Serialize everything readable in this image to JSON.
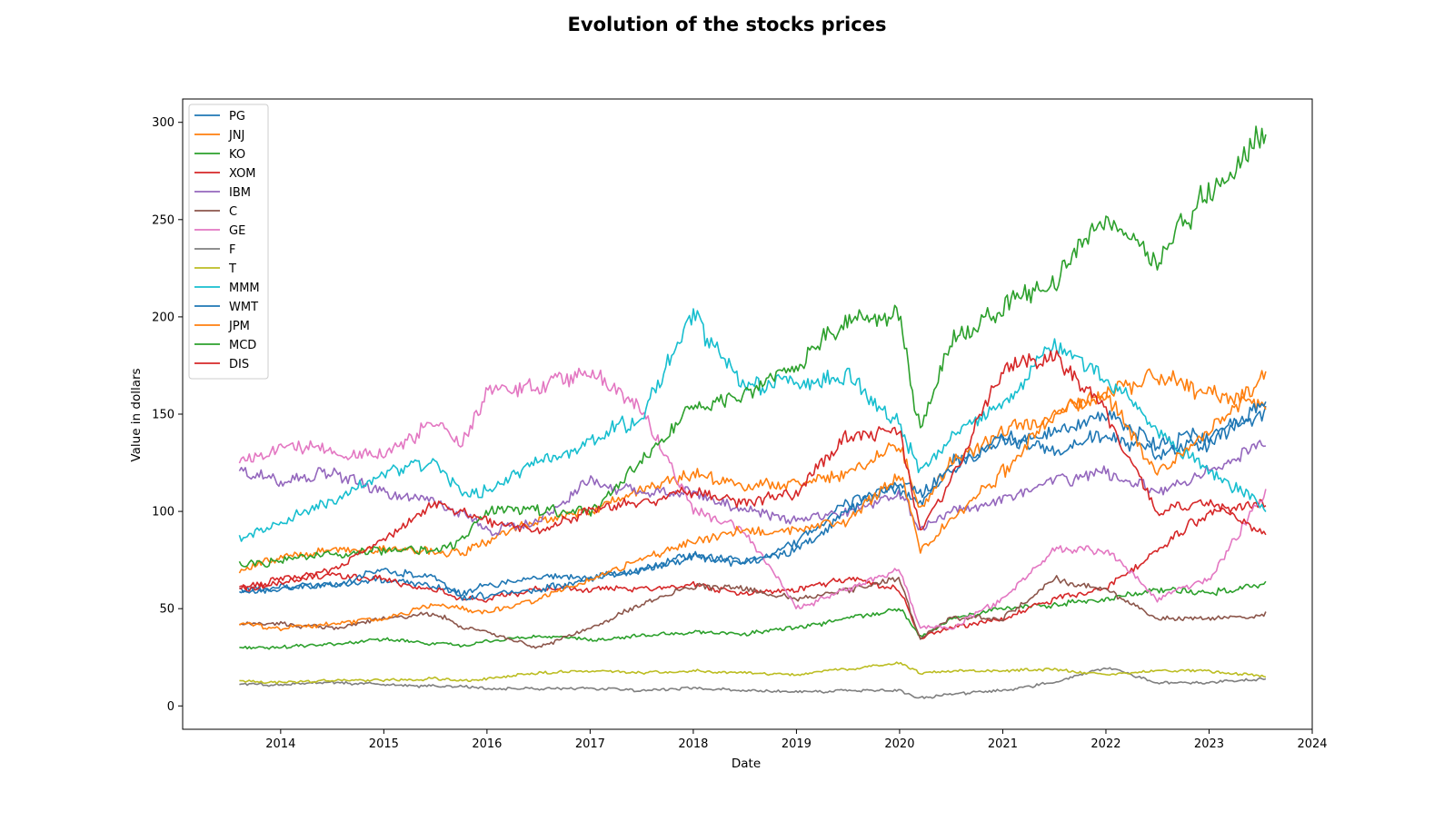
{
  "chart_data": {
    "type": "line",
    "title": "Evolution of the stocks prices",
    "xlabel": "Date",
    "ylabel": "Value in dollars",
    "xlim": [
      2013.05,
      2024.0
    ],
    "ylim": [
      -12,
      312
    ],
    "xticks": [
      2014,
      2015,
      2016,
      2017,
      2018,
      2019,
      2020,
      2021,
      2022,
      2023,
      2024
    ],
    "yticks": [
      0,
      50,
      100,
      150,
      200,
      250,
      300
    ],
    "grid": false,
    "legend_position": "top-left",
    "x": [
      2013.6,
      2014.0,
      2014.5,
      2015.0,
      2015.5,
      2015.75,
      2016.0,
      2016.5,
      2017.0,
      2017.5,
      2018.0,
      2018.5,
      2019.0,
      2019.5,
      2020.0,
      2020.2,
      2020.5,
      2021.0,
      2021.5,
      2022.0,
      2022.5,
      2023.0,
      2023.55
    ],
    "series": [
      {
        "name": "PG",
        "color": "#1f77b4",
        "values": [
          60,
          61,
          63,
          65,
          62,
          58,
          62,
          66,
          66,
          70,
          77,
          73,
          85,
          105,
          112,
          102,
          125,
          135,
          140,
          150,
          135,
          140,
          150
        ]
      },
      {
        "name": "JNJ",
        "color": "#ff7f0e",
        "values": [
          70,
          76,
          80,
          81,
          80,
          78,
          85,
          95,
          100,
          110,
          120,
          112,
          115,
          120,
          135,
          100,
          125,
          140,
          150,
          160,
          170,
          160,
          155
        ]
      },
      {
        "name": "KO",
        "color": "#2ca02c",
        "values": [
          30,
          30,
          32,
          34,
          32,
          31,
          33,
          36,
          34,
          36,
          38,
          37,
          40,
          45,
          50,
          35,
          45,
          50,
          52,
          55,
          60,
          58,
          62
        ]
      },
      {
        "name": "XOM",
        "color": "#d62728",
        "values": [
          60,
          63,
          68,
          65,
          60,
          55,
          55,
          60,
          60,
          60,
          62,
          58,
          60,
          65,
          60,
          35,
          40,
          45,
          55,
          60,
          80,
          100,
          105
        ]
      },
      {
        "name": "IBM",
        "color": "#9467bd",
        "values": [
          120,
          115,
          120,
          110,
          105,
          100,
          90,
          95,
          115,
          110,
          110,
          100,
          95,
          100,
          110,
          90,
          100,
          105,
          115,
          120,
          110,
          120,
          135
        ]
      },
      {
        "name": "C",
        "color": "#8c564b",
        "values": [
          42,
          42,
          40,
          45,
          48,
          40,
          38,
          30,
          40,
          52,
          62,
          60,
          55,
          60,
          65,
          35,
          45,
          45,
          65,
          60,
          45,
          45,
          47
        ]
      },
      {
        "name": "GE",
        "color": "#e377c2",
        "values": [
          125,
          135,
          130,
          130,
          145,
          135,
          160,
          165,
          170,
          155,
          100,
          90,
          50,
          60,
          70,
          40,
          40,
          55,
          80,
          80,
          55,
          65,
          110
        ]
      },
      {
        "name": "F",
        "color": "#7f7f7f",
        "values": [
          11,
          11,
          12,
          11,
          10,
          10,
          9,
          9,
          9,
          8,
          9,
          8,
          7,
          8,
          8,
          4,
          6,
          8,
          12,
          20,
          12,
          12,
          14
        ]
      },
      {
        "name": "T",
        "color": "#bcbd22",
        "values": [
          13,
          12,
          13,
          13,
          14,
          13,
          14,
          17,
          18,
          17,
          18,
          17,
          16,
          19,
          22,
          17,
          18,
          18,
          19,
          16,
          18,
          18,
          15
        ]
      },
      {
        "name": "MMM",
        "color": "#17becf",
        "values": [
          85,
          95,
          105,
          120,
          125,
          110,
          110,
          125,
          135,
          150,
          200,
          165,
          165,
          170,
          145,
          120,
          140,
          155,
          185,
          170,
          140,
          120,
          102
        ]
      },
      {
        "name": "WMT",
        "color": "#1f77b4",
        "values": [
          58,
          60,
          62,
          70,
          65,
          55,
          57,
          60,
          65,
          70,
          78,
          75,
          80,
          100,
          115,
          110,
          120,
          140,
          130,
          140,
          130,
          135,
          155
        ]
      },
      {
        "name": "JPM",
        "color": "#ff7f0e",
        "values": [
          42,
          40,
          42,
          45,
          52,
          50,
          48,
          55,
          65,
          75,
          85,
          90,
          90,
          95,
          120,
          80,
          95,
          120,
          150,
          160,
          120,
          140,
          170
        ]
      },
      {
        "name": "MCD",
        "color": "#2ca02c",
        "values": [
          73,
          74,
          78,
          80,
          80,
          85,
          100,
          100,
          100,
          125,
          155,
          160,
          175,
          200,
          200,
          140,
          190,
          205,
          220,
          250,
          230,
          265,
          295
        ]
      },
      {
        "name": "DIS",
        "color": "#d62728",
        "values": [
          60,
          65,
          70,
          85,
          105,
          100,
          95,
          90,
          100,
          105,
          110,
          105,
          110,
          140,
          140,
          90,
          115,
          175,
          180,
          150,
          100,
          105,
          88
        ]
      }
    ]
  }
}
